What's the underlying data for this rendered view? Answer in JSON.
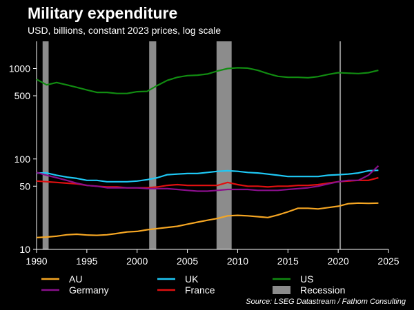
{
  "chart_data": {
    "type": "line",
    "title": "Military expenditure",
    "subtitle": "USD, billions, constant 2023 prices, log scale",
    "source": "Source: LSEG Datastream / Fathom Consulting",
    "y_scale": "log",
    "xlim": [
      1990,
      2025
    ],
    "ylim": [
      10,
      2000
    ],
    "x_ticks": [
      1990,
      1995,
      2000,
      2005,
      2010,
      2015,
      2020,
      2025
    ],
    "y_ticks": [
      10,
      50,
      100,
      500,
      1000
    ],
    "y_tick_labels": [
      "10",
      "50",
      "100",
      "500",
      "1000"
    ],
    "grid": false,
    "vertical_marker_x": 2020.2,
    "recessions": [
      [
        1990.6,
        1991.2
      ],
      [
        2001.2,
        2001.9
      ],
      [
        2007.9,
        2009.4
      ]
    ],
    "legend": {
      "placement": "bottom",
      "entries": [
        {
          "label": "AU",
          "color": "#f5a623",
          "kind": "line"
        },
        {
          "label": "UK",
          "color": "#1ec8f5",
          "kind": "line"
        },
        {
          "label": "US",
          "color": "#118c11",
          "kind": "line"
        },
        {
          "label": "Germany",
          "color": "#8a0f8c",
          "kind": "line"
        },
        {
          "label": "France",
          "color": "#e01010",
          "kind": "line"
        },
        {
          "label": "Recession",
          "color": "#8c8c8c",
          "kind": "box"
        }
      ]
    },
    "series": [
      {
        "name": "US",
        "color": "#118c11",
        "x": [
          1990,
          1991,
          1992,
          1993,
          1994,
          1995,
          1996,
          1997,
          1998,
          1999,
          2000,
          2001,
          2002,
          2003,
          2004,
          2005,
          2006,
          2007,
          2008,
          2009,
          2010,
          2011,
          2012,
          2013,
          2014,
          2015,
          2016,
          2017,
          2018,
          2019,
          2020,
          2021,
          2022,
          2023,
          2024
        ],
        "values": [
          760,
          660,
          700,
          660,
          620,
          580,
          545,
          545,
          530,
          530,
          555,
          560,
          650,
          740,
          800,
          835,
          845,
          870,
          940,
          1000,
          1020,
          1010,
          955,
          880,
          820,
          800,
          800,
          790,
          815,
          860,
          900,
          890,
          880,
          900,
          955
        ]
      },
      {
        "name": "UK",
        "color": "#1ec8f5",
        "x": [
          1990,
          1991,
          1992,
          1993,
          1994,
          1995,
          1996,
          1997,
          1998,
          1999,
          2000,
          2001,
          2002,
          2003,
          2004,
          2005,
          2006,
          2007,
          2008,
          2009,
          2010,
          2011,
          2012,
          2013,
          2014,
          2015,
          2016,
          2017,
          2018,
          2019,
          2020,
          2021,
          2022,
          2023,
          2024
        ],
        "values": [
          70,
          70,
          66,
          63,
          61,
          58,
          58,
          56,
          56,
          56,
          57,
          59,
          62,
          67,
          68,
          69,
          69,
          71,
          73,
          74,
          73,
          71,
          70,
          68,
          66,
          64,
          64,
          64,
          64,
          66,
          67,
          68,
          70,
          74,
          75
        ]
      },
      {
        "name": "France",
        "color": "#e01010",
        "x": [
          1990,
          1991,
          1992,
          1993,
          1994,
          1995,
          1996,
          1997,
          1998,
          1999,
          2000,
          2001,
          2002,
          2003,
          2004,
          2005,
          2006,
          2007,
          2008,
          2009,
          2010,
          2011,
          2012,
          2013,
          2014,
          2015,
          2016,
          2017,
          2018,
          2019,
          2020,
          2021,
          2022,
          2023,
          2024
        ],
        "values": [
          57,
          56,
          55,
          54,
          53,
          51,
          50,
          49,
          49,
          48,
          48,
          48,
          49,
          51,
          52,
          51,
          51,
          51,
          51,
          55,
          52,
          50,
          50,
          49,
          50,
          50,
          51,
          51,
          52,
          54,
          56,
          57,
          58,
          58,
          62
        ]
      },
      {
        "name": "Germany",
        "color": "#8a0f8c",
        "x": [
          1990,
          1991,
          1992,
          1993,
          1994,
          1995,
          1996,
          1997,
          1998,
          1999,
          2000,
          2001,
          2002,
          2003,
          2004,
          2005,
          2006,
          2007,
          2008,
          2009,
          2010,
          2011,
          2012,
          2013,
          2014,
          2015,
          2016,
          2017,
          2018,
          2019,
          2020,
          2021,
          2022,
          2023,
          2024
        ],
        "values": [
          71,
          66,
          62,
          58,
          54,
          51,
          50,
          48,
          48,
          48,
          48,
          47,
          47,
          47,
          46,
          45,
          44,
          44,
          45,
          46,
          46,
          46,
          45,
          45,
          45,
          46,
          47,
          48,
          50,
          53,
          56,
          58,
          58,
          66,
          84
        ]
      },
      {
        "name": "AU",
        "color": "#f5a623",
        "x": [
          1990,
          1991,
          1992,
          1993,
          1994,
          1995,
          1996,
          1997,
          1998,
          1999,
          2000,
          2001,
          2002,
          2003,
          2004,
          2005,
          2006,
          2007,
          2008,
          2009,
          2010,
          2011,
          2012,
          2013,
          2014,
          2015,
          2016,
          2017,
          2018,
          2019,
          2020,
          2021,
          2022,
          2023,
          2024
        ],
        "values": [
          13.5,
          13.7,
          14.0,
          14.5,
          14.7,
          14.4,
          14.3,
          14.5,
          15.0,
          15.6,
          15.8,
          16.5,
          17.0,
          17.5,
          18.0,
          19.0,
          20.0,
          21.0,
          22.0,
          23.5,
          23.8,
          23.5,
          23.0,
          22.5,
          24.0,
          26.0,
          28.5,
          28.5,
          28.0,
          29.0,
          30.0,
          32.0,
          32.5,
          32.3,
          32.5
        ]
      }
    ]
  }
}
